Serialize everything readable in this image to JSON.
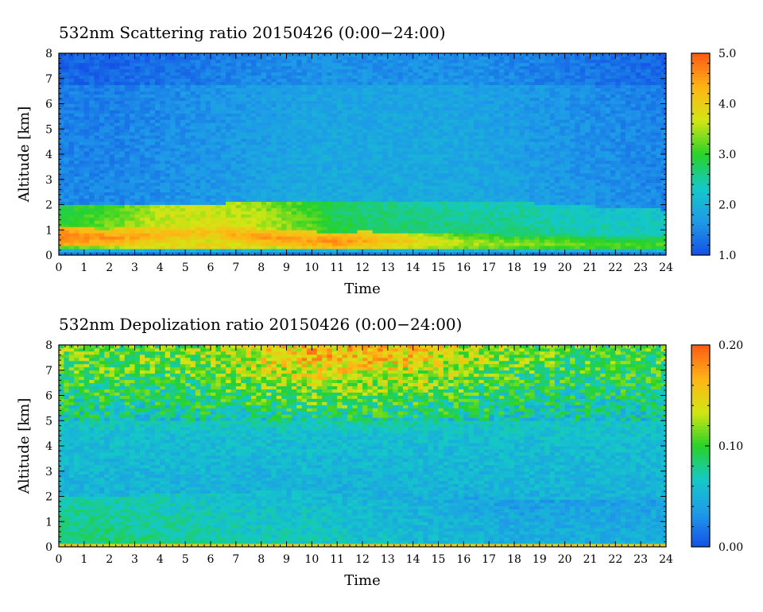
{
  "chart_data": [
    {
      "type": "heatmap",
      "title": "532nm Scattering ratio  20150426 (0:00−24:00)",
      "xlabel": "Time",
      "ylabel": "Altitude [km]",
      "xlim": [
        0,
        24
      ],
      "ylim": [
        0,
        8
      ],
      "x_ticks": [
        "0",
        "1",
        "2",
        "3",
        "4",
        "5",
        "6",
        "7",
        "8",
        "9",
        "10",
        "11",
        "12",
        "13",
        "14",
        "15",
        "16",
        "17",
        "18",
        "19",
        "20",
        "21",
        "22",
        "23",
        "24"
      ],
      "y_ticks": [
        "0",
        "1",
        "2",
        "3",
        "4",
        "5",
        "6",
        "7",
        "8"
      ],
      "colorbar": {
        "min": 1.0,
        "max": 5.0,
        "ticks": [
          "1.0",
          "2.0",
          "3.0",
          "4.0",
          "5.0"
        ]
      },
      "colors": [
        "#1450e6",
        "#1e9ae8",
        "#14c8c8",
        "#28d228",
        "#d2e614",
        "#ffb414",
        "#ff5a14"
      ],
      "profile": {
        "times": [
          0,
          2,
          4,
          6,
          8,
          10,
          11,
          12,
          14,
          16,
          18,
          20,
          22,
          24
        ],
        "bl_top_km": [
          2.0,
          2.0,
          2.05,
          2.05,
          2.1,
          2.1,
          2.15,
          2.15,
          2.15,
          2.1,
          2.1,
          2.0,
          1.9,
          1.8
        ],
        "bl_value": [
          3.2,
          3.5,
          3.9,
          4.0,
          3.8,
          3.4,
          3.1,
          3.0,
          2.9,
          2.8,
          2.8,
          2.7,
          2.6,
          2.6
        ],
        "low_layer_km": [
          0.75,
          0.7,
          0.8,
          0.9,
          0.7,
          0.6,
          0.55,
          0.6,
          0.55,
          0.5,
          0.45,
          0.45,
          0.4,
          0.4
        ],
        "low_layer_value": [
          4.8,
          4.6,
          4.3,
          4.2,
          4.5,
          4.5,
          4.6,
          4.4,
          4.0,
          3.6,
          3.4,
          3.3,
          3.2,
          3.2
        ],
        "free_trop_value": [
          1.5,
          1.5,
          1.6,
          1.7,
          1.8,
          1.9,
          1.9,
          1.9,
          1.9,
          1.9,
          1.8,
          1.7,
          1.6,
          1.5
        ]
      }
    },
    {
      "type": "heatmap",
      "title": "532nm Depolization ratio  20150426 (0:00−24:00)",
      "xlabel": "Time",
      "ylabel": "Altitude [km]",
      "xlim": [
        0,
        24
      ],
      "ylim": [
        0,
        8
      ],
      "x_ticks": [
        "0",
        "1",
        "2",
        "3",
        "4",
        "5",
        "6",
        "7",
        "8",
        "9",
        "10",
        "11",
        "12",
        "13",
        "14",
        "15",
        "16",
        "17",
        "18",
        "19",
        "20",
        "21",
        "22",
        "23",
        "24"
      ],
      "y_ticks": [
        "0",
        "1",
        "2",
        "3",
        "4",
        "5",
        "6",
        "7",
        "8"
      ],
      "colorbar": {
        "min": 0.0,
        "max": 0.2,
        "ticks": [
          "0.00",
          "0.10",
          "0.20"
        ]
      },
      "colors": [
        "#1450e6",
        "#1e9ae8",
        "#14c8c8",
        "#28d228",
        "#d2e614",
        "#ffb414",
        "#ff5a14"
      ],
      "profile": {
        "times": [
          0,
          2,
          4,
          6,
          8,
          10,
          12,
          14,
          16,
          18,
          20,
          22,
          24
        ],
        "bl_top_km": [
          2.0,
          2.0,
          2.1,
          2.1,
          2.2,
          2.2,
          2.15,
          2.1,
          2.0,
          1.9,
          1.9,
          1.9,
          1.8
        ],
        "bl_value": [
          0.085,
          0.085,
          0.08,
          0.075,
          0.07,
          0.07,
          0.065,
          0.06,
          0.055,
          0.05,
          0.05,
          0.05,
          0.05
        ],
        "upper_value": [
          0.11,
          0.11,
          0.11,
          0.12,
          0.14,
          0.16,
          0.16,
          0.15,
          0.13,
          0.11,
          0.1,
          0.1,
          0.1
        ]
      }
    }
  ]
}
